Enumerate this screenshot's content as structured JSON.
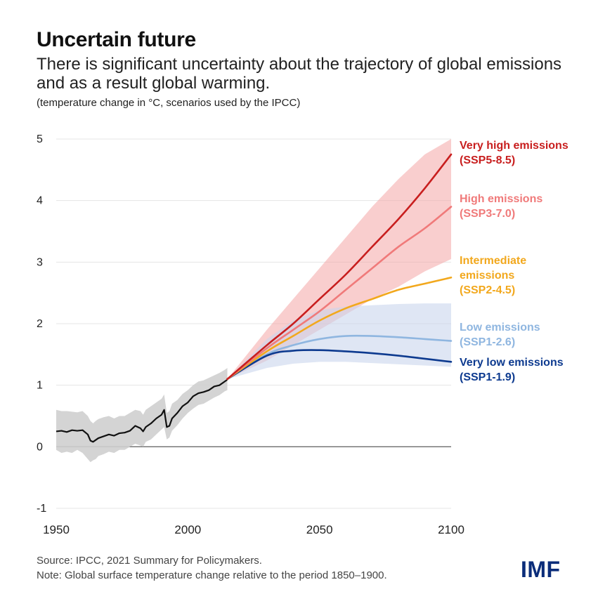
{
  "header": {
    "title": "Uncertain future",
    "subtitle": "There is significant uncertainty about the trajectory of global emissions and as a result global warming.",
    "units": "(temperature change in °C, scenarios used by the IPCC)"
  },
  "footer": {
    "source": "Source: IPCC, 2021 Summary for Policymakers.",
    "note": "Note: Global surface temperature change relative to the period 1850–1900.",
    "logo": "IMF"
  },
  "chart_data": {
    "type": "line",
    "xlim": [
      1950,
      2100
    ],
    "ylim": [
      -1,
      5
    ],
    "xticks": [
      1950,
      2000,
      2050,
      2100
    ],
    "yticks": [
      -1,
      0,
      1,
      2,
      3,
      4,
      5
    ],
    "grid": true,
    "legend": "right, inline labels at line ends",
    "historical": {
      "color": "#111111",
      "band_color": "#cfcfcf",
      "x": [
        1950,
        1952,
        1954,
        1956,
        1958,
        1960,
        1962,
        1963,
        1964,
        1965,
        1966,
        1968,
        1970,
        1972,
        1974,
        1976,
        1978,
        1980,
        1982,
        1983,
        1984,
        1986,
        1988,
        1990,
        1991,
        1992,
        1993,
        1994,
        1996,
        1998,
        2000,
        2002,
        2004,
        2006,
        2008,
        2010,
        2012,
        2014,
        2015
      ],
      "values": [
        0.25,
        0.26,
        0.24,
        0.27,
        0.26,
        0.27,
        0.2,
        0.1,
        0.08,
        0.11,
        0.14,
        0.17,
        0.2,
        0.18,
        0.22,
        0.23,
        0.26,
        0.34,
        0.3,
        0.25,
        0.32,
        0.38,
        0.46,
        0.52,
        0.6,
        0.32,
        0.34,
        0.46,
        0.55,
        0.66,
        0.72,
        0.82,
        0.87,
        0.89,
        0.92,
        0.98,
        1.0,
        1.06,
        1.09
      ],
      "band_low": [
        -0.05,
        -0.1,
        -0.08,
        -0.1,
        -0.05,
        -0.1,
        -0.2,
        -0.25,
        -0.22,
        -0.2,
        -0.15,
        -0.12,
        -0.08,
        -0.1,
        -0.05,
        -0.05,
        0.0,
        0.05,
        0.02,
        0.0,
        0.08,
        0.12,
        0.2,
        0.28,
        0.32,
        0.12,
        0.15,
        0.26,
        0.35,
        0.46,
        0.55,
        0.62,
        0.68,
        0.7,
        0.75,
        0.8,
        0.84,
        0.9,
        0.92
      ],
      "band_high": [
        0.6,
        0.58,
        0.58,
        0.57,
        0.56,
        0.58,
        0.5,
        0.42,
        0.38,
        0.42,
        0.45,
        0.48,
        0.5,
        0.46,
        0.5,
        0.5,
        0.55,
        0.6,
        0.58,
        0.52,
        0.6,
        0.66,
        0.72,
        0.78,
        0.85,
        0.55,
        0.58,
        0.7,
        0.76,
        0.86,
        0.92,
        1.0,
        1.06,
        1.08,
        1.12,
        1.16,
        1.2,
        1.25,
        1.28
      ]
    },
    "scenarios": [
      {
        "name": "Very high emissions",
        "code": "(SSP5-8.5)",
        "color": "#c81e1e",
        "x": [
          2015,
          2030,
          2040,
          2050,
          2060,
          2070,
          2080,
          2090,
          2100
        ],
        "values": [
          1.1,
          1.65,
          2.0,
          2.4,
          2.8,
          3.25,
          3.7,
          4.2,
          4.75
        ]
      },
      {
        "name": "High emissions",
        "code": "(SSP3-7.0)",
        "color": "#f07a7a",
        "x": [
          2015,
          2030,
          2040,
          2050,
          2060,
          2070,
          2080,
          2090,
          2100
        ],
        "values": [
          1.1,
          1.6,
          1.9,
          2.2,
          2.55,
          2.9,
          3.25,
          3.55,
          3.9
        ]
      },
      {
        "name": "Intermediate emissions",
        "name_lines": [
          "Intermediate",
          "emissions"
        ],
        "code": "(SSP2-4.5)",
        "color": "#f2a81d",
        "x": [
          2015,
          2030,
          2040,
          2050,
          2060,
          2070,
          2080,
          2090,
          2100
        ],
        "values": [
          1.1,
          1.55,
          1.8,
          2.05,
          2.25,
          2.4,
          2.55,
          2.65,
          2.75
        ]
      },
      {
        "name": "Low emissions",
        "code": "(SSP1-2.6)",
        "color": "#8fb6e0",
        "x": [
          2015,
          2030,
          2040,
          2050,
          2060,
          2070,
          2080,
          2090,
          2100
        ],
        "values": [
          1.1,
          1.5,
          1.65,
          1.75,
          1.8,
          1.8,
          1.78,
          1.75,
          1.72
        ]
      },
      {
        "name": "Very low emissions",
        "code": "(SSP1-1.9)",
        "color": "#0d3a8f",
        "x": [
          2015,
          2030,
          2040,
          2050,
          2060,
          2070,
          2080,
          2090,
          2100
        ],
        "values": [
          1.1,
          1.48,
          1.56,
          1.57,
          1.55,
          1.52,
          1.48,
          1.43,
          1.38
        ]
      }
    ],
    "bands": [
      {
        "name": "Very high emissions range",
        "color": "#f4a6a6",
        "x": [
          2015,
          2030,
          2040,
          2050,
          2060,
          2070,
          2080,
          2090,
          2100
        ],
        "low": [
          1.1,
          1.4,
          1.65,
          1.9,
          2.15,
          2.4,
          2.6,
          2.85,
          3.05
        ],
        "high": [
          1.1,
          1.9,
          2.4,
          2.9,
          3.4,
          3.9,
          4.35,
          4.75,
          5.0
        ]
      },
      {
        "name": "Very low emissions range",
        "color": "#c9d5ec",
        "x": [
          2015,
          2030,
          2040,
          2050,
          2060,
          2070,
          2080,
          2090,
          2100
        ],
        "low": [
          1.1,
          1.28,
          1.35,
          1.38,
          1.38,
          1.36,
          1.34,
          1.32,
          1.3
        ],
        "high": [
          1.1,
          1.75,
          2.05,
          2.22,
          2.28,
          2.3,
          2.32,
          2.33,
          2.33
        ]
      }
    ]
  }
}
